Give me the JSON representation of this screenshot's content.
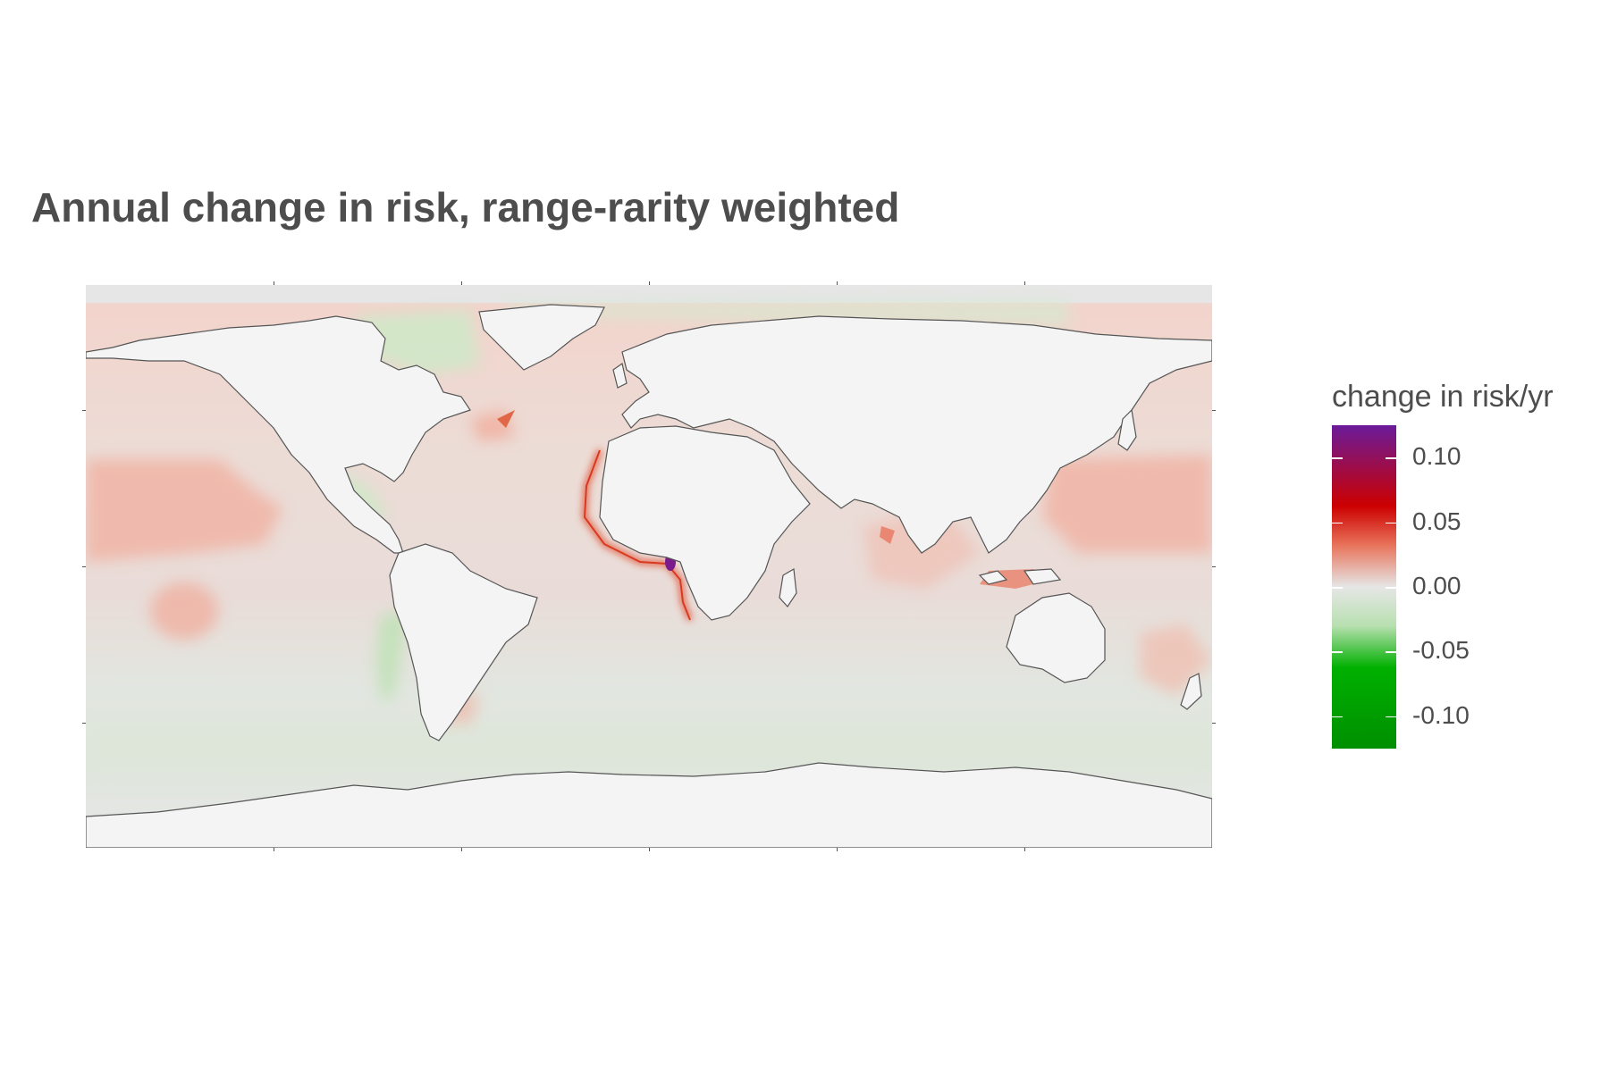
{
  "title": "Annual change in risk, range-rarity weighted",
  "legend": {
    "title": "change in risk/yr",
    "colors": {
      "max": "#6a1b9a",
      "high": "#cc0000",
      "mid_high": "#e8735a",
      "zero": "#e6e6e6",
      "mid_low": "#b8e0b0",
      "low": "#00b000",
      "min": "#008f00"
    },
    "range": [
      -0.125,
      0.125
    ],
    "ticks": [
      {
        "value": 0.1,
        "label": "0.10"
      },
      {
        "value": 0.05,
        "label": "0.05"
      },
      {
        "value": 0.0,
        "label": "0.00"
      },
      {
        "value": -0.05,
        "label": "-0.05"
      },
      {
        "value": -0.1,
        "label": "-0.10"
      }
    ]
  },
  "map": {
    "land_color": "#f4f4f4",
    "ocean_base_color": "#e6e6e6",
    "coast_color": "#555555",
    "hotspots": [
      {
        "name": "gulf-of-guinea",
        "value": 0.12
      },
      {
        "name": "west-africa-coast",
        "value": 0.06
      },
      {
        "name": "north-pacific",
        "value": 0.03
      },
      {
        "name": "tropical-west-pacific",
        "value": 0.03
      },
      {
        "name": "indonesia",
        "value": 0.04
      },
      {
        "name": "east-pacific-south",
        "value": -0.03
      },
      {
        "name": "hudson-bay",
        "value": -0.03
      }
    ]
  }
}
